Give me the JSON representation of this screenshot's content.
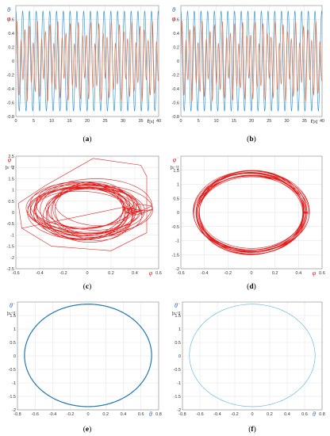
{
  "chart_data": [
    {
      "panel": "a",
      "type": "line",
      "caption": "(a)",
      "xlabel_symbol": "t",
      "xlabel_unit": "[s]",
      "ylabel_symbols": [
        "θ",
        "φ"
      ],
      "xlim": [
        0,
        40
      ],
      "ylim": [
        -0.8,
        0.8
      ],
      "xticks": [
        0,
        5,
        10,
        15,
        20,
        25,
        30,
        35,
        40
      ],
      "yticks": [
        -0.8,
        -0.6,
        -0.4,
        -0.2,
        0,
        0.2,
        0.4,
        0.6
      ],
      "ytick_labels": [
        "-0.8",
        "-0.6",
        "-0.4",
        "-0.2",
        "0",
        "0.2",
        "0.4",
        "0.6"
      ],
      "series": [
        {
          "symbol": "θ",
          "color": "#3a9bd5",
          "amplitude": 0.72,
          "period": 1.9
        },
        {
          "symbol": "φ",
          "color": "#e3744a",
          "amplitude": 0.55,
          "period": 1.15
        }
      ]
    },
    {
      "panel": "b",
      "type": "line",
      "caption": "(b)",
      "xlabel_symbol": "t",
      "xlabel_unit": "[s]",
      "ylabel_symbols": [
        "θ",
        "φ"
      ],
      "xlim": [
        0,
        40
      ],
      "ylim": [
        -0.8,
        0.8
      ],
      "xticks": [
        0,
        5,
        10,
        15,
        20,
        25,
        30,
        35,
        40
      ],
      "yticks": [
        -0.8,
        -0.6,
        -0.4,
        -0.2,
        0,
        0.2,
        0.4,
        0.6
      ],
      "ytick_labels": [
        "-0.8",
        "-0.6",
        "-0.4",
        "-0.2",
        "0",
        "0.2",
        "0.4",
        "0.6"
      ],
      "series": [
        {
          "symbol": "θ",
          "color": "#3a9bd5",
          "amplitude": 0.72,
          "period": 1.9
        },
        {
          "symbol": "φ",
          "color": "#e3744a",
          "amplitude": 0.55,
          "period": 1.15
        }
      ]
    },
    {
      "panel": "c",
      "type": "line",
      "caption": "(c)",
      "xlabel_symbol": "φ",
      "ylabel_symbol": "φ̇",
      "ylabel_unit": "[s⁻¹]",
      "xlim": [
        -0.6,
        0.6
      ],
      "ylim": [
        -2.5,
        2.5
      ],
      "xticks": [
        -0.6,
        -0.4,
        -0.2,
        0,
        0.2,
        0.4,
        0.6
      ],
      "xtick_labels": [
        "-0.6",
        "-0.4",
        "-0.2",
        "0",
        "0.2",
        "0.4",
        "0.6"
      ],
      "yticks": [
        -2.5,
        -2,
        -1.5,
        -1,
        -0.5,
        0,
        0.5,
        1,
        1.5,
        2,
        2.5
      ],
      "ytick_labels": [
        "-2.5",
        "-2",
        "-1.5",
        "-1",
        "-0.5",
        "0",
        "0.5",
        "1",
        "1.5",
        "2",
        "2.5"
      ],
      "color": "#e01f1f",
      "orbit_center": [
        0,
        0.1
      ],
      "orbit_rx_range": [
        0.3,
        0.5
      ],
      "orbit_ry_range": [
        0.9,
        1.3
      ]
    },
    {
      "panel": "d",
      "type": "line",
      "caption": "(d)",
      "xlabel_symbol": "φ",
      "ylabel_symbol": "φ̇",
      "ylabel_unit": "[s⁻¹]",
      "xlim": [
        -0.6,
        0.6
      ],
      "ylim": [
        -2,
        2
      ],
      "xticks": [
        -0.6,
        -0.4,
        -0.2,
        0,
        0.2,
        0.4,
        0.6
      ],
      "xtick_labels": [
        "-0.6",
        "-0.4",
        "-0.2",
        "0",
        "0.2",
        "0.4",
        "0.6"
      ],
      "yticks": [
        -2,
        -1.5,
        -1,
        -0.5,
        0,
        0.5,
        1,
        1.5
      ],
      "ytick_labels": [
        "-2",
        "-1.5",
        "-1",
        "-0.5",
        "0",
        "0.5",
        "1",
        "1.5"
      ],
      "color": "#e01f1f",
      "orbit_center": [
        0,
        0
      ],
      "orbit_rx_range": [
        0.44,
        0.5
      ],
      "orbit_ry_range": [
        1.3,
        1.5
      ]
    },
    {
      "panel": "e",
      "type": "line",
      "caption": "(e)",
      "xlabel_symbol": "θ",
      "ylabel_symbol": "θ̇",
      "ylabel_unit": "[s⁻¹]",
      "xlim": [
        -0.8,
        0.8
      ],
      "ylim": [
        -2,
        2
      ],
      "xticks": [
        -0.8,
        -0.6,
        -0.4,
        -0.2,
        0,
        0.2,
        0.4,
        0.6,
        0.8
      ],
      "xtick_labels": [
        "-0.8",
        "-0.6",
        "-0.4",
        "-0.2",
        "0",
        "0.2",
        "0.4",
        "0.6",
        "0.8"
      ],
      "yticks": [
        -2,
        -1.5,
        -1,
        -0.5,
        0,
        0.5,
        1,
        1.5
      ],
      "ytick_labels": [
        "-2",
        "-1.5",
        "-1",
        "-0.5",
        "0",
        "0.5",
        "1",
        "1.5"
      ],
      "color": "#1f78b4",
      "orbit_center": [
        0,
        0.02
      ],
      "orbit_rx": 0.72,
      "orbit_ry": 1.9
    },
    {
      "panel": "f",
      "type": "line",
      "caption": "(f)",
      "xlabel_symbol": "θ",
      "ylabel_symbol": "θ̇",
      "ylabel_unit": "[s⁻¹]",
      "xlim": [
        -0.8,
        0.8
      ],
      "ylim": [
        -2,
        2
      ],
      "xticks": [
        -0.8,
        -0.6,
        -0.4,
        -0.2,
        0,
        0.2,
        0.4,
        0.6,
        0.8
      ],
      "xtick_labels": [
        "-0.8",
        "-0.6",
        "-0.4",
        "-0.2",
        "0",
        "0.2",
        "0.4",
        "0.6",
        "0.8"
      ],
      "yticks": [
        -2,
        -1.5,
        -1,
        -0.5,
        0,
        0.5,
        1,
        1.5
      ],
      "ytick_labels": [
        "-2",
        "-1.5",
        "-1",
        "-0.5",
        "0",
        "0.5",
        "1",
        "1.5"
      ],
      "color": "#5aaee0",
      "orbit_center": [
        0,
        0.02
      ],
      "orbit_rx": 0.72,
      "orbit_ry": 1.9
    }
  ]
}
